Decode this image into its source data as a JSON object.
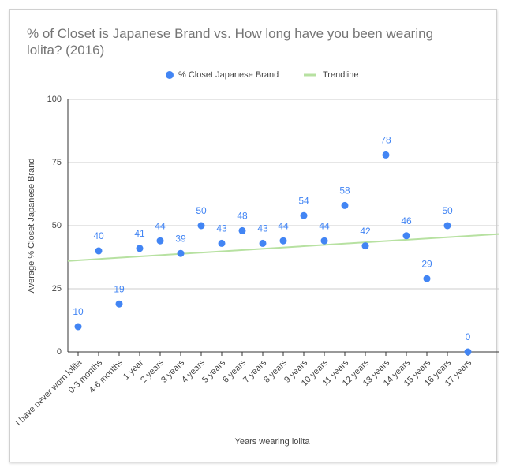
{
  "chart_data": {
    "type": "scatter",
    "title": "% of Closet is Japanese Brand vs. How long have you been wearing lolita? (2016)",
    "x_label": "Years wearing lolita",
    "y_label": "Average % Closet Japanese Brand",
    "categories": [
      "I have never worn lolita",
      "0-3 months",
      "4-6 months",
      "1 year",
      "2 years",
      "3 years",
      "4 years",
      "5 years",
      "6 years",
      "7 years",
      "8 years",
      "9 years",
      "10 years",
      "11 years",
      "12 years",
      "13 years",
      "14 years",
      "15 years",
      "16 years",
      "17 years"
    ],
    "series": [
      {
        "name": "% Closet Japanese Brand",
        "color": "#4285f4",
        "values": [
          10,
          40,
          19,
          41,
          44,
          39,
          50,
          43,
          48,
          43,
          44,
          54,
          44,
          58,
          42,
          78,
          46,
          29,
          50,
          0
        ]
      }
    ],
    "trendline": {
      "name": "Trendline",
      "color": "#b7e1a1"
    },
    "ylim": [
      0,
      100
    ],
    "yticks": [
      0,
      25,
      50,
      75,
      100
    ],
    "grid": true,
    "legend": "top"
  }
}
